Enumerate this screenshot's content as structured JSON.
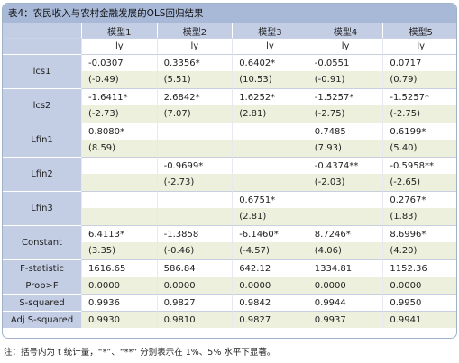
{
  "caption": "表4：农民收入与农村金融发展的OLS回归结果",
  "models": [
    "模型1",
    "模型2",
    "模型3",
    "模型4",
    "模型5"
  ],
  "dependent": [
    "ly",
    "ly",
    "ly",
    "ly",
    "ly"
  ],
  "rows": [
    {
      "name": "lcs1",
      "coef": [
        "-0.0307",
        "0.3356*",
        "0.6402*",
        "-0.0551",
        "0.0717"
      ],
      "t": [
        "(-0.49)",
        "(5.51)",
        "(10.53)",
        "(-0.91)",
        "(0.79)"
      ]
    },
    {
      "name": "lcs2",
      "coef": [
        "-1.6411*",
        "2.6842*",
        "1.6252*",
        "-1.5257*",
        "-1.5257*"
      ],
      "t": [
        "(-2.73)",
        "(7.07)",
        "(2.81)",
        "(-2.75)",
        "(-2.75)"
      ]
    },
    {
      "name": "Lfin1",
      "coef": [
        "0.8080*",
        "",
        "",
        "0.7485",
        "0.6199*"
      ],
      "t": [
        "(8.59)",
        "",
        "",
        "(7.93)",
        "(5.40)"
      ]
    },
    {
      "name": "Lfin2",
      "coef": [
        "",
        "-0.9699*",
        "",
        "-0.4374**",
        "-0.5958**"
      ],
      "t": [
        "",
        "(-2.73)",
        "",
        "(-2.03)",
        "(-2.65)"
      ]
    },
    {
      "name": "Lfin3",
      "coef": [
        "",
        "",
        "0.6751*",
        "",
        "0.2767*"
      ],
      "t": [
        "",
        "",
        "(2.81)",
        "",
        "(1.83)"
      ]
    },
    {
      "name": "Constant",
      "coef": [
        "6.4113*",
        "-1.3858",
        "-6.1460*",
        "8.7246*",
        "8.6996*"
      ],
      "t": [
        "(3.35)",
        "(-0.46)",
        "(-4.57)",
        "(4.06)",
        "(4.20)"
      ]
    }
  ],
  "stats": [
    {
      "name": "F-statistic",
      "values": [
        "1616.65",
        "586.84",
        "642.12",
        "1334.81",
        "1152.36"
      ]
    },
    {
      "name": "Prob>F",
      "values": [
        "0.0000",
        "0.0000",
        "0.0000",
        "0.0000",
        "0.0000"
      ]
    },
    {
      "name": "S-squared",
      "values": [
        "0.9936",
        "0.9827",
        "0.9842",
        "0.9944",
        "0.9950"
      ]
    },
    {
      "name": "Adj S-squared",
      "values": [
        "0.9930",
        "0.9810",
        "0.9827",
        "0.9937",
        "0.9941"
      ]
    }
  ],
  "note": "注：括号内为 t 统计量，“*”、“**” 分别表示在 1%、5% 水平下显著。",
  "colors": {
    "header": "#c3cde4",
    "caption": "#a8b9d8",
    "band": "#edf0dc",
    "border": "#9fb2c9"
  }
}
